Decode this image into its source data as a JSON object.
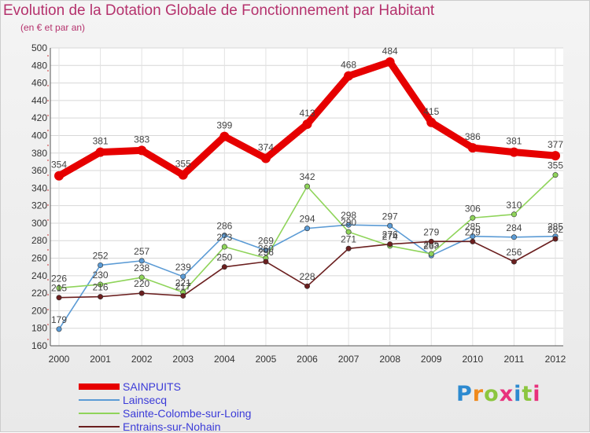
{
  "title": "Evolution de la Dotation Globale de Fonctionnement par Habitant",
  "subtitle": "(en € et par an)",
  "logo": {
    "text": "Proxiti",
    "colors": [
      "#2d8ad0",
      "#f08a1c",
      "#8cc63f",
      "#e8327c",
      "#2d8ad0",
      "#8cc63f",
      "#e8327c"
    ]
  },
  "chart_data": {
    "type": "line",
    "title": "Evolution de la Dotation Globale de Fonctionnement par Habitant",
    "ylabel": "(en € et par an)",
    "xlabel": "",
    "categories": [
      "2000",
      "2001",
      "2002",
      "2003",
      "2004",
      "2005",
      "2006",
      "2007",
      "2008",
      "2009",
      "2010",
      "2011",
      "2012"
    ],
    "ylim": [
      160,
      500
    ],
    "yticks": [
      160,
      180,
      200,
      220,
      240,
      260,
      280,
      300,
      320,
      340,
      360,
      380,
      400,
      420,
      440,
      460,
      480,
      500
    ],
    "series": [
      {
        "name": "SAINPUITS",
        "color": "#e60000",
        "values": [
          354,
          381,
          383,
          355,
          399,
          374,
          413,
          468,
          484,
          415,
          386,
          381,
          377
        ]
      },
      {
        "name": "Lainsecq",
        "color": "#5b9bd5",
        "values": [
          179,
          252,
          257,
          239,
          286,
          269,
          294,
          298,
          297,
          263,
          285,
          284,
          285
        ]
      },
      {
        "name": "Sainte-Colombe-sur-Loing",
        "color": "#8fd45a",
        "values": [
          226,
          230,
          238,
          221,
          273,
          260,
          342,
          290,
          274,
          265,
          306,
          310,
          355
        ]
      },
      {
        "name": "Entrains-sur-Nohain",
        "color": "#6b1f1f",
        "values": [
          215,
          216,
          220,
          217,
          250,
          256,
          228,
          271,
          276,
          279,
          279,
          256,
          282
        ]
      }
    ],
    "legend": "bottom-left"
  }
}
